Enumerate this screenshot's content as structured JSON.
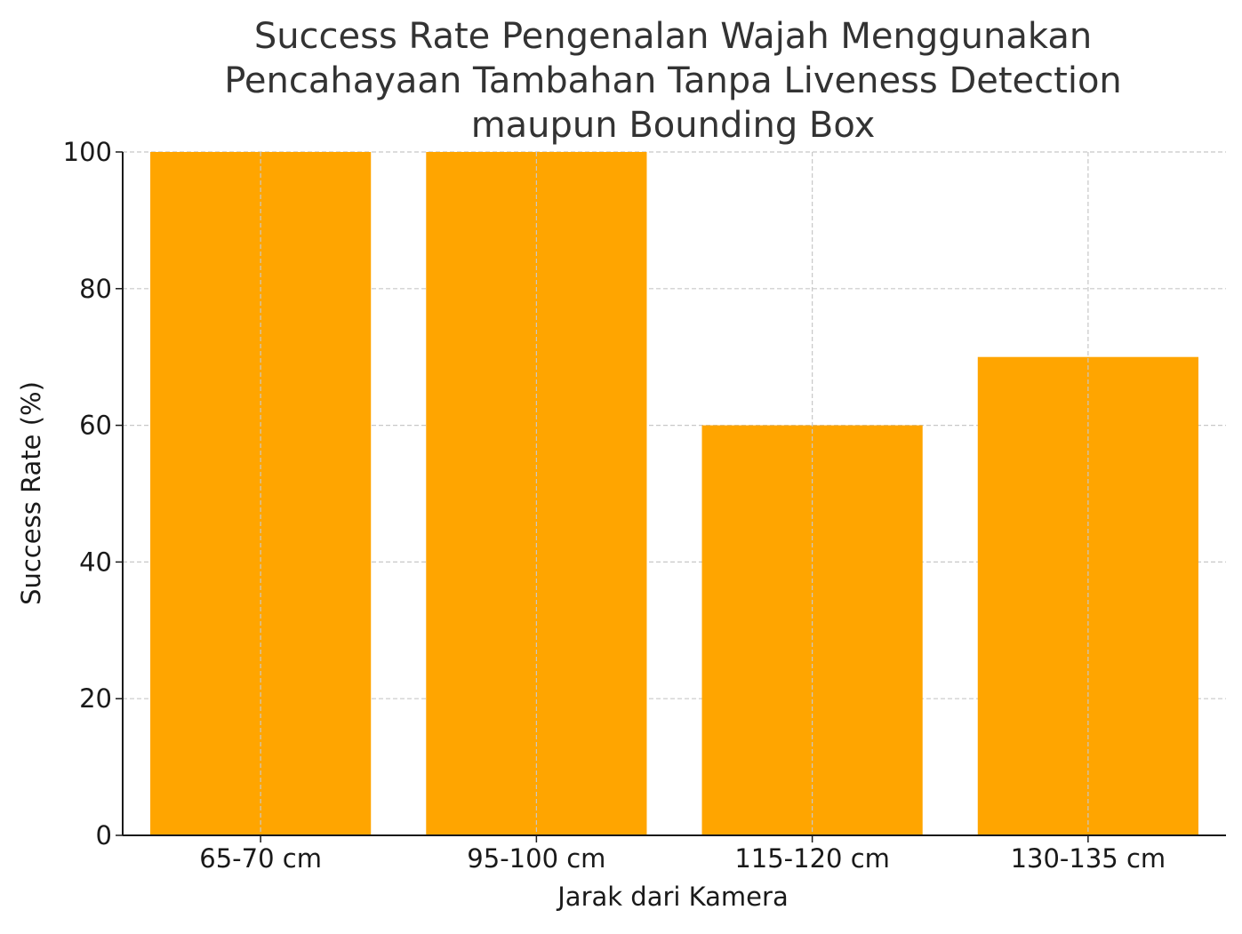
{
  "chart_data": {
    "type": "bar",
    "title_lines": [
      "Success Rate Pengenalan Wajah Menggunakan",
      "Pencahayaan Tambahan Tanpa Liveness Detection",
      "maupun Bounding Box"
    ],
    "xlabel": "Jarak dari Kamera",
    "ylabel": "Success Rate (%)",
    "categories": [
      "65-70 cm",
      "95-100 cm",
      "115-120 cm",
      "130-135 cm"
    ],
    "values": [
      100,
      100,
      60,
      70
    ],
    "ylim": [
      0,
      100
    ],
    "yticks": [
      "0",
      "20",
      "40",
      "60",
      "80",
      "100"
    ],
    "bar_color": "#FFA500",
    "grid": true,
    "legend": "none"
  }
}
